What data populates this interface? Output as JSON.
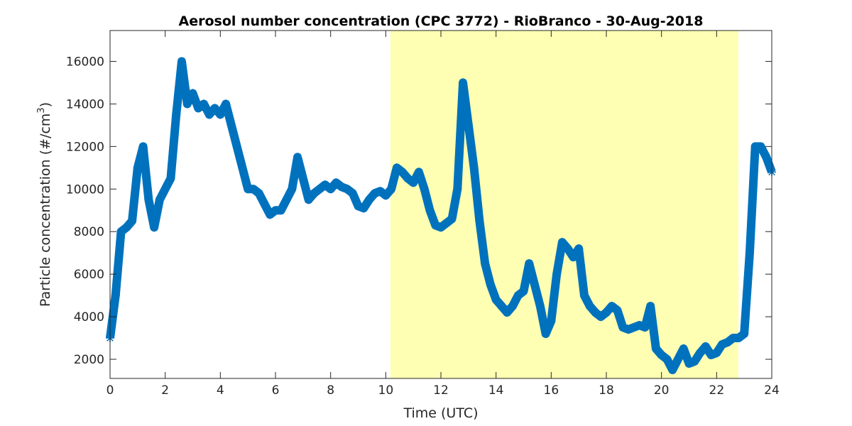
{
  "chart_data": {
    "type": "line",
    "marker": "asterisk",
    "title": "Aerosol number concentration (CPC 3772) - RioBranco - 30-Aug-2018",
    "xlabel": "Time (UTC)",
    "ylabel": [
      "Particle concentration (#/cm",
      "3",
      ")"
    ],
    "xlim": [
      0,
      24
    ],
    "ylim": [
      1100,
      17450
    ],
    "xticks": [
      0,
      2,
      4,
      6,
      8,
      10,
      12,
      14,
      16,
      18,
      20,
      22,
      24
    ],
    "yticks": [
      2000,
      4000,
      6000,
      8000,
      10000,
      12000,
      14000,
      16000
    ],
    "shade": [
      10.17,
      22.79
    ],
    "shade_color": "#ffffb3",
    "series": [
      {
        "color": "#0072bd",
        "x": [
          0,
          0.2,
          0.4,
          0.6,
          0.8,
          1,
          1.2,
          1.4,
          1.6,
          1.8,
          2,
          2.2,
          2.4,
          2.6,
          2.8,
          3,
          3.2,
          3.4,
          3.6,
          3.8,
          4,
          4.2,
          4.4,
          4.6,
          4.8,
          5,
          5.2,
          5.4,
          5.6,
          5.8,
          6,
          6.2,
          6.4,
          6.6,
          6.8,
          7,
          7.2,
          7.4,
          7.6,
          7.8,
          8,
          8.2,
          8.4,
          8.6,
          8.8,
          9,
          9.2,
          9.4,
          9.6,
          9.8,
          10,
          10.2,
          10.4,
          10.6,
          10.8,
          11,
          11.2,
          11.4,
          11.6,
          11.8,
          12,
          12.2,
          12.4,
          12.6,
          12.8,
          13,
          13.2,
          13.4,
          13.6,
          13.8,
          14,
          14.2,
          14.4,
          14.6,
          14.8,
          15,
          15.2,
          15.4,
          15.6,
          15.8,
          16,
          16.2,
          16.4,
          16.6,
          16.8,
          17,
          17.2,
          17.4,
          17.6,
          17.8,
          18,
          18.2,
          18.4,
          18.6,
          18.8,
          19,
          19.2,
          19.4,
          19.6,
          19.8,
          20,
          20.2,
          20.4,
          20.6,
          20.8,
          21,
          21.2,
          21.4,
          21.6,
          21.8,
          22,
          22.2,
          22.4,
          22.6,
          22.8,
          23,
          23.2,
          23.4,
          23.6,
          23.8,
          24
        ],
        "values": [
          3000,
          5000,
          8000,
          8200,
          8500,
          11000,
          12000,
          9500,
          8200,
          9500,
          10000,
          10500,
          13500,
          16000,
          14000,
          14500,
          13800,
          14000,
          13500,
          13800,
          13500,
          14000,
          13000,
          12000,
          11000,
          10000,
          10000,
          9800,
          9300,
          8800,
          9000,
          9000,
          9500,
          10000,
          11500,
          10500,
          9500,
          9800,
          10000,
          10200,
          10000,
          10300,
          10100,
          10000,
          9800,
          9200,
          9100,
          9500,
          9800,
          9900,
          9700,
          10000,
          11000,
          10800,
          10500,
          10300,
          10800,
          10000,
          9000,
          8300,
          8200,
          8400,
          8600,
          10000,
          15000,
          13000,
          11000,
          8500,
          6500,
          5500,
          4800,
          4500,
          4200,
          4500,
          5000,
          5200,
          6500,
          5500,
          4500,
          3200,
          3800,
          6000,
          7500,
          7200,
          6800,
          7200,
          5000,
          4500,
          4200,
          4000,
          4200,
          4500,
          4300,
          3500,
          3400,
          3500,
          3600,
          3500,
          4500,
          2500,
          2200,
          2000,
          1500,
          2000,
          2500,
          1800,
          1900,
          2300,
          2600,
          2200,
          2300,
          2700,
          2800,
          3000,
          3000,
          3200,
          7000,
          12000,
          12000,
          11500,
          10800
        ]
      }
    ]
  }
}
